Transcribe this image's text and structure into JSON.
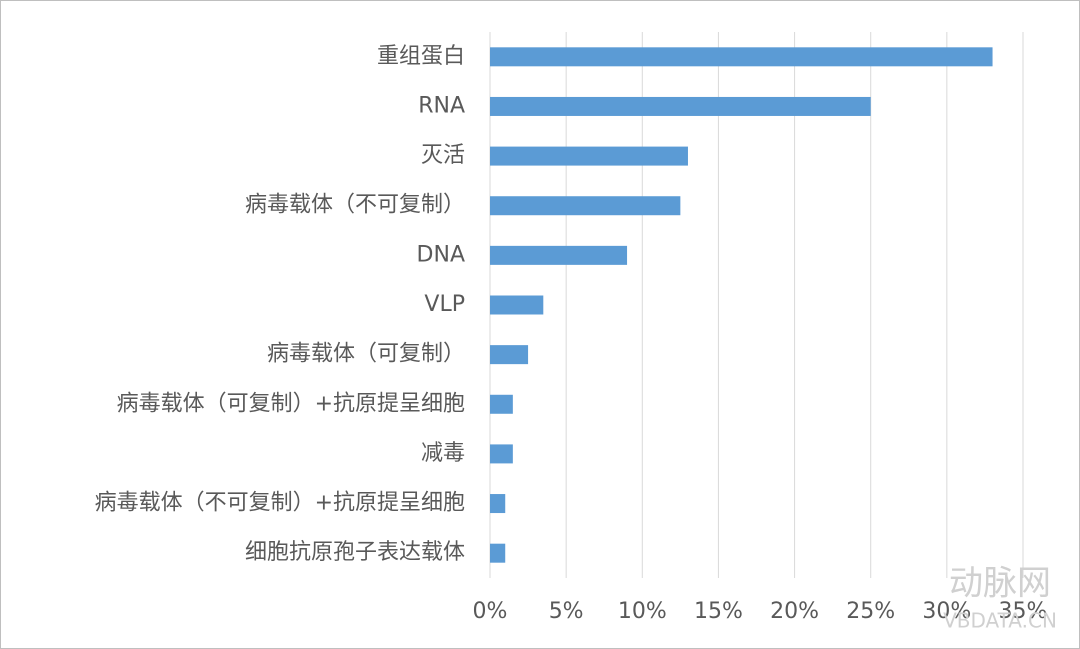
{
  "chart_data": {
    "type": "hbar",
    "categories": [
      "重组蛋白",
      "RNA",
      "灭活",
      "病毒载体（不可复制）",
      "DNA",
      "VLP",
      "病毒载体（可复制）",
      "病毒载体（可复制）+抗原提呈细胞",
      "减毒",
      "病毒载体（不可复制）+抗原提呈细胞",
      "细胞抗原孢子表达载体"
    ],
    "values": [
      33,
      25,
      13,
      12.5,
      9,
      3.5,
      2.5,
      1.5,
      1.5,
      1,
      1
    ],
    "color": "#5b9bd5",
    "xlim": [
      0,
      35
    ],
    "xticks": [
      {
        "value": 0,
        "label": "0%"
      },
      {
        "value": 5,
        "label": "5%"
      },
      {
        "value": 10,
        "label": "10%"
      },
      {
        "value": 15,
        "label": "15%"
      },
      {
        "value": 20,
        "label": "20%"
      },
      {
        "value": 25,
        "label": "25%"
      },
      {
        "value": 30,
        "label": "30%"
      },
      {
        "value": 35,
        "label": "35%"
      }
    ],
    "grid": true
  },
  "watermark": {
    "logo": "动脉网",
    "site": "VBDATA.CN"
  }
}
